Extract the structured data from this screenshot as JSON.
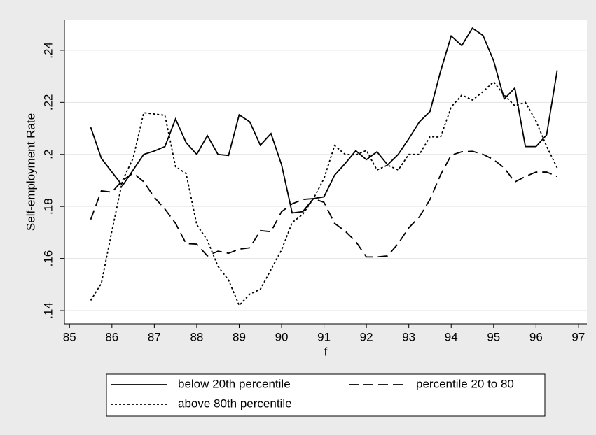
{
  "chart_data": {
    "type": "line",
    "x_label": "f",
    "y_label": "Self-employment Rate",
    "x": [
      85.5,
      85.75,
      86,
      86.25,
      86.5,
      86.75,
      87,
      87.25,
      87.5,
      87.75,
      88,
      88.25,
      88.5,
      88.75,
      89,
      89.25,
      89.5,
      89.75,
      90,
      90.25,
      90.5,
      90.75,
      91,
      91.25,
      91.5,
      91.75,
      92,
      92.25,
      92.5,
      92.75,
      93,
      93.25,
      93.5,
      93.75,
      94,
      94.25,
      94.5,
      94.75,
      95,
      95.25,
      95.5,
      95.75,
      96,
      96.25,
      96.5
    ],
    "series": [
      {
        "name": "below 20th percentile",
        "color": "#000000",
        "dash": "solid",
        "values": [
          0.2104,
          0.1985,
          0.1932,
          0.188,
          0.194,
          0.2,
          0.2013,
          0.203,
          0.2136,
          0.2045,
          0.2,
          0.2072,
          0.2,
          0.1996,
          0.2152,
          0.2125,
          0.2035,
          0.208,
          0.196,
          0.1775,
          0.178,
          0.183,
          0.1837,
          0.192,
          0.1965,
          0.2014,
          0.198,
          0.201,
          0.196,
          0.2,
          0.206,
          0.2125,
          0.2165,
          0.232,
          0.2455,
          0.2418,
          0.2485,
          0.2457,
          0.236,
          0.2213,
          0.2255,
          0.203,
          0.203,
          0.2075,
          0.2323
        ]
      },
      {
        "name": "percentile 20 to 80",
        "color": "#000000",
        "dash": "dashed",
        "values": [
          0.175,
          0.186,
          0.1855,
          0.19,
          0.1928,
          0.1895,
          0.1835,
          0.179,
          0.1735,
          0.1657,
          0.1655,
          0.161,
          0.1628,
          0.162,
          0.1636,
          0.1641,
          0.1707,
          0.1703,
          0.178,
          0.181,
          0.1827,
          0.183,
          0.1816,
          0.1735,
          0.1705,
          0.1665,
          0.1606,
          0.1606,
          0.161,
          0.1657,
          0.1718,
          0.176,
          0.1827,
          0.1922,
          0.1997,
          0.201,
          0.2012,
          0.2,
          0.198,
          0.1948,
          0.1894,
          0.1915,
          0.1932,
          0.1932,
          0.1915
        ]
      },
      {
        "name": "above 80th percentile",
        "color": "#000000",
        "dash": "dotted",
        "values": [
          0.1439,
          0.1504,
          0.1706,
          0.19,
          0.1985,
          0.216,
          0.2155,
          0.215,
          0.1953,
          0.1926,
          0.173,
          0.167,
          0.157,
          0.1517,
          0.142,
          0.1463,
          0.1482,
          0.1557,
          0.1633,
          0.1738,
          0.177,
          0.183,
          0.1907,
          0.2034,
          0.2,
          0.1998,
          0.2015,
          0.194,
          0.1959,
          0.194,
          0.2,
          0.2,
          0.2068,
          0.2066,
          0.2182,
          0.2228,
          0.2209,
          0.2241,
          0.2279,
          0.2228,
          0.2187,
          0.22,
          0.2128,
          0.2031,
          0.1948
        ]
      }
    ],
    "xlim": [
      84.88,
      97.2
    ],
    "xticks": [
      85,
      86,
      87,
      88,
      89,
      90,
      91,
      92,
      93,
      94,
      95,
      96,
      97
    ],
    "ylim": [
      0.1349,
      0.2518
    ],
    "yticks": [
      {
        "value": 0.14,
        "label": ".14"
      },
      {
        "value": 0.16,
        "label": ".16"
      },
      {
        "value": 0.18,
        "label": ".18"
      },
      {
        "value": 0.2,
        "label": ".2"
      },
      {
        "value": 0.22,
        "label": ".22"
      },
      {
        "value": 0.24,
        "label": ".24"
      }
    ],
    "grid": true,
    "legend": "bottom"
  }
}
